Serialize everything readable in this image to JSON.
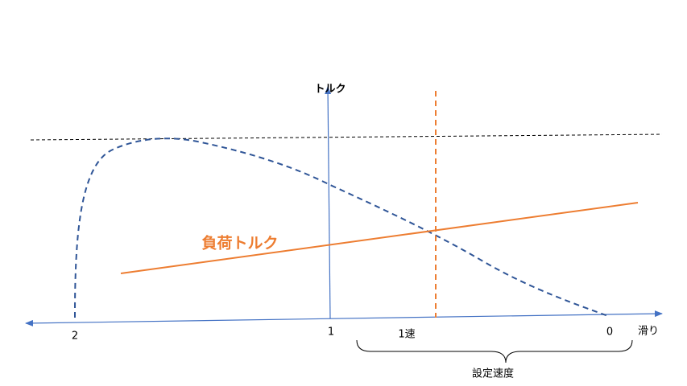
{
  "axis": {
    "y_label": "トルク",
    "x_label": "滑り",
    "ticks": [
      "2",
      "1",
      "0"
    ]
  },
  "annotations": {
    "first_speed": "1速",
    "set_speed": "設定速度",
    "load_torque": "負荷トルク"
  }
}
